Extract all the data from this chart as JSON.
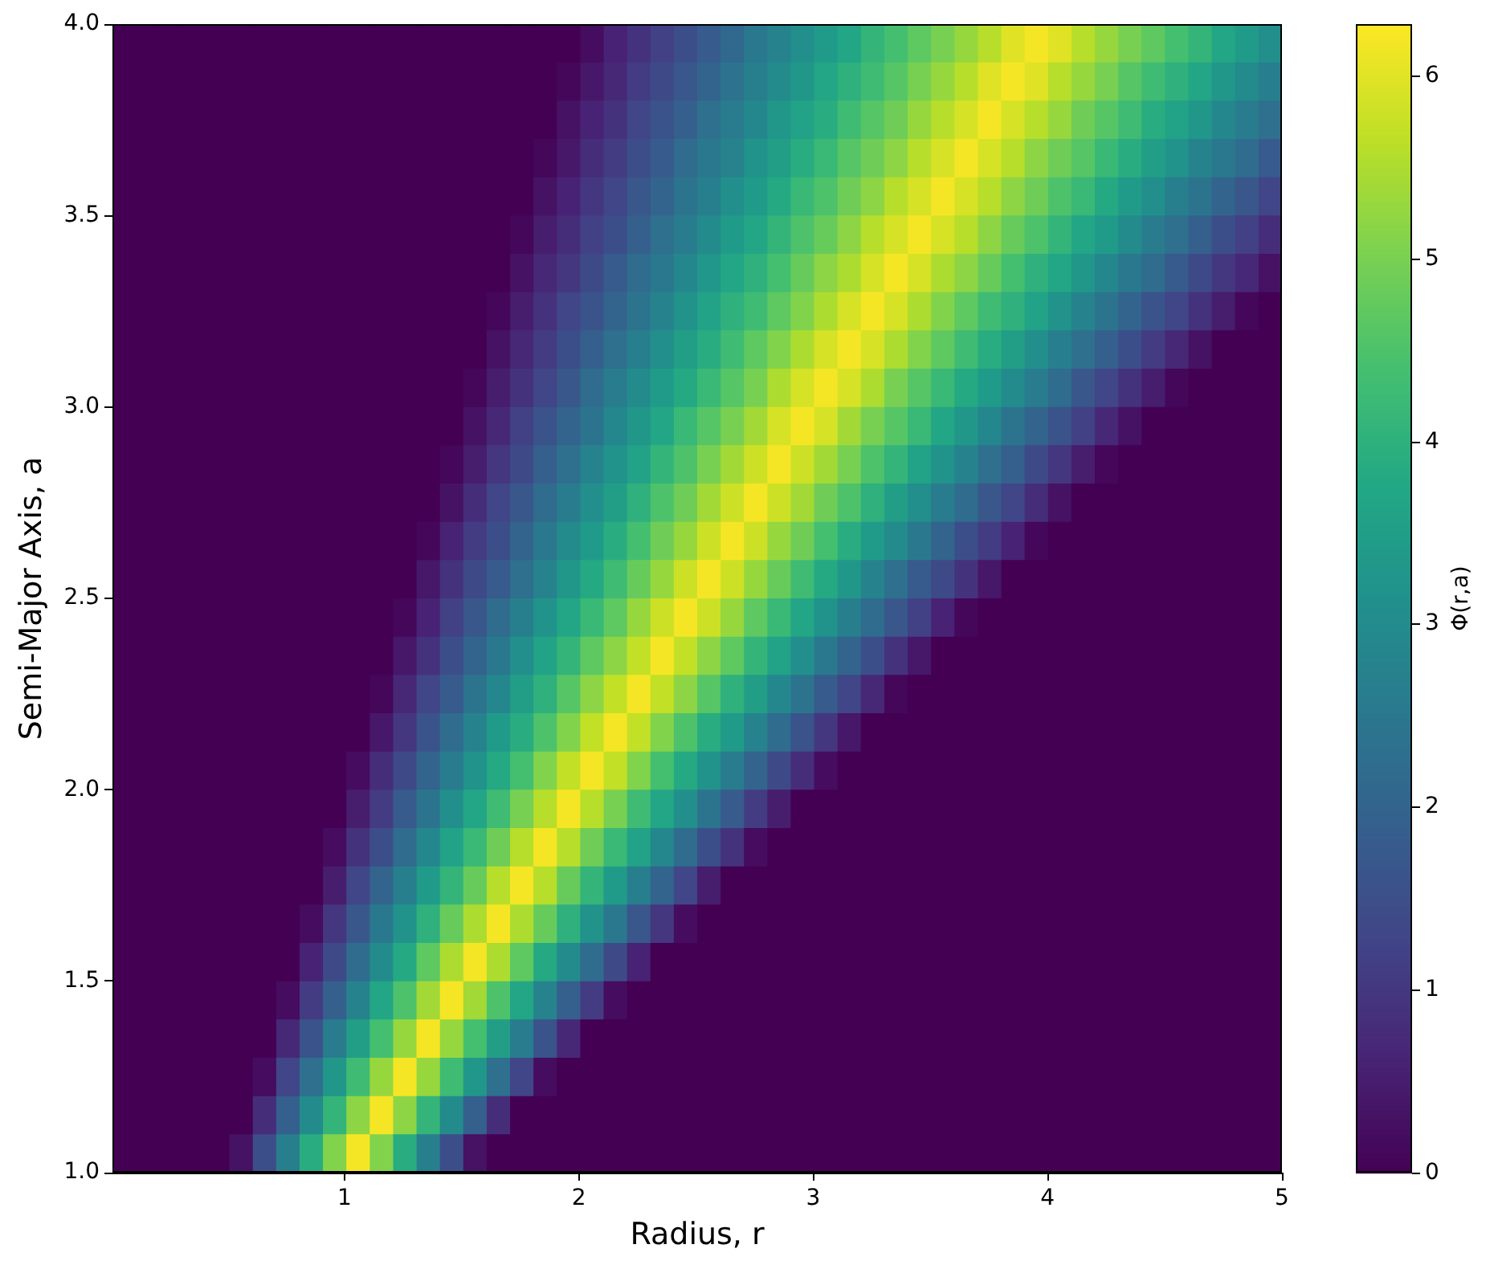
{
  "chart_data": {
    "type": "heatmap",
    "xlabel": "Radius, r",
    "ylabel": "Semi-Major Axis, a",
    "clabel": "Φ(r,a)",
    "xlim": [
      0.01,
      5
    ],
    "xticks": [
      1,
      2,
      3,
      4,
      5
    ],
    "ylim": [
      1,
      4
    ],
    "yticks": [
      {
        "value": 1,
        "label": "1.0"
      },
      1.5,
      {
        "value": 2,
        "label": "2.0"
      },
      2.5,
      {
        "value": 3,
        "label": "3.0"
      },
      3.5,
      {
        "value": 4,
        "label": "4.0"
      }
    ],
    "clim": [
      0,
      6.28
    ],
    "cticks": [
      0,
      1,
      2,
      3,
      4,
      5,
      6
    ],
    "cells": [
      [
        0,
        0,
        0,
        0,
        0,
        0,
        0,
        0,
        0,
        0,
        0,
        0,
        0,
        0,
        0,
        0,
        0,
        0,
        0,
        0,
        0.2,
        0.6,
        0.9,
        1.2,
        1.5,
        1.8,
        2.1,
        2.5,
        2.8,
        3.1,
        3.4,
        3.7,
        4.1,
        4.4,
        4.7,
        5.0,
        5.3,
        5.6,
        6.0,
        6.2,
        6.0,
        5.6,
        5.3,
        5.0,
        4.7,
        4.4,
        4.1,
        3.7,
        3.4,
        3.1
      ],
      [
        0,
        0,
        0,
        0,
        0,
        0,
        0,
        0,
        0,
        0,
        0,
        0,
        0,
        0,
        0,
        0,
        0,
        0,
        0,
        0.1,
        0.4,
        0.7,
        1.1,
        1.4,
        1.7,
        2.0,
        2.4,
        2.7,
        3.0,
        3.3,
        3.7,
        4.0,
        4.3,
        4.6,
        5.0,
        5.3,
        5.6,
        6.0,
        6.2,
        6.0,
        5.6,
        5.3,
        5.0,
        4.6,
        4.3,
        4.0,
        3.7,
        3.3,
        3.0,
        2.7
      ],
      [
        0,
        0,
        0,
        0,
        0,
        0,
        0,
        0,
        0,
        0,
        0,
        0,
        0,
        0,
        0,
        0,
        0,
        0,
        0,
        0.3,
        0.6,
        0.9,
        1.3,
        1.6,
        1.9,
        2.3,
        2.6,
        2.9,
        3.3,
        3.6,
        3.9,
        4.3,
        4.6,
        4.9,
        5.3,
        5.6,
        5.9,
        6.2,
        5.9,
        5.6,
        5.3,
        4.9,
        4.6,
        4.3,
        3.9,
        3.6,
        3.3,
        2.9,
        2.6,
        2.3
      ],
      [
        0,
        0,
        0,
        0,
        0,
        0,
        0,
        0,
        0,
        0,
        0,
        0,
        0,
        0,
        0,
        0,
        0,
        0,
        0.1,
        0.4,
        0.8,
        1.1,
        1.5,
        1.8,
        2.2,
        2.5,
        2.8,
        3.2,
        3.5,
        3.9,
        4.2,
        4.6,
        4.9,
        5.2,
        5.6,
        5.9,
        6.2,
        5.9,
        5.6,
        5.2,
        4.9,
        4.6,
        4.2,
        3.9,
        3.5,
        3.2,
        2.8,
        2.5,
        2.2,
        1.8
      ],
      [
        0,
        0,
        0,
        0,
        0,
        0,
        0,
        0,
        0,
        0,
        0,
        0,
        0,
        0,
        0,
        0,
        0,
        0,
        0.3,
        0.6,
        1.0,
        1.3,
        1.7,
        2.0,
        2.4,
        2.7,
        3.1,
        3.4,
        3.8,
        4.2,
        4.5,
        4.9,
        5.2,
        5.6,
        5.9,
        6.2,
        5.9,
        5.6,
        5.2,
        4.9,
        4.5,
        4.2,
        3.8,
        3.4,
        3.1,
        2.7,
        2.4,
        2.0,
        1.7,
        1.3
      ],
      [
        0,
        0,
        0,
        0,
        0,
        0,
        0,
        0,
        0,
        0,
        0,
        0,
        0,
        0,
        0,
        0,
        0,
        0.1,
        0.5,
        0.8,
        1.2,
        1.5,
        1.9,
        2.3,
        2.6,
        3.0,
        3.4,
        3.7,
        4.1,
        4.5,
        4.8,
        5.2,
        5.6,
        5.9,
        6.2,
        5.9,
        5.6,
        5.2,
        4.8,
        4.5,
        4.1,
        3.7,
        3.4,
        3.0,
        2.6,
        2.3,
        1.9,
        1.5,
        1.2,
        0.8
      ],
      [
        0,
        0,
        0,
        0,
        0,
        0,
        0,
        0,
        0,
        0,
        0,
        0,
        0,
        0,
        0,
        0,
        0,
        0.3,
        0.7,
        1.0,
        1.4,
        1.8,
        2.2,
        2.5,
        2.9,
        3.3,
        3.7,
        4.0,
        4.4,
        4.8,
        5.2,
        5.5,
        5.9,
        6.2,
        5.9,
        5.5,
        5.2,
        4.8,
        4.4,
        4.0,
        3.7,
        3.3,
        2.9,
        2.5,
        2.2,
        1.8,
        1.4,
        1.0,
        0.7,
        0.3
      ],
      [
        0,
        0,
        0,
        0,
        0,
        0,
        0,
        0,
        0,
        0,
        0,
        0,
        0,
        0,
        0,
        0,
        0.1,
        0.5,
        0.9,
        1.3,
        1.6,
        2.0,
        2.4,
        2.8,
        3.2,
        3.6,
        4.0,
        4.3,
        4.7,
        5.1,
        5.5,
        5.9,
        6.2,
        5.9,
        5.5,
        5.1,
        4.7,
        4.3,
        4.0,
        3.6,
        3.2,
        2.8,
        2.4,
        2.0,
        1.6,
        1.3,
        0.9,
        0.5,
        0.1,
        0
      ],
      [
        0,
        0,
        0,
        0,
        0,
        0,
        0,
        0,
        0,
        0,
        0,
        0,
        0,
        0,
        0,
        0,
        0.3,
        0.7,
        1.1,
        1.5,
        1.9,
        2.3,
        2.7,
        3.1,
        3.5,
        3.9,
        4.3,
        4.7,
        5.1,
        5.5,
        5.9,
        6.2,
        5.9,
        5.5,
        5.1,
        4.7,
        4.3,
        3.9,
        3.5,
        3.1,
        2.7,
        2.3,
        1.9,
        1.5,
        1.1,
        0.7,
        0.3,
        0,
        0,
        0
      ],
      [
        0,
        0,
        0,
        0,
        0,
        0,
        0,
        0,
        0,
        0,
        0,
        0,
        0,
        0,
        0,
        0.1,
        0.5,
        0.9,
        1.3,
        1.7,
        2.2,
        2.6,
        3.0,
        3.4,
        3.8,
        4.2,
        4.6,
        5.0,
        5.5,
        5.9,
        6.2,
        5.9,
        5.5,
        5.0,
        4.6,
        4.2,
        3.8,
        3.4,
        3.0,
        2.6,
        2.2,
        1.7,
        1.3,
        0.9,
        0.5,
        0.1,
        0,
        0,
        0,
        0
      ],
      [
        0,
        0,
        0,
        0,
        0,
        0,
        0,
        0,
        0,
        0,
        0,
        0,
        0,
        0,
        0,
        0.3,
        0.7,
        1.2,
        1.6,
        2.0,
        2.4,
        2.9,
        3.3,
        3.7,
        4.2,
        4.6,
        5.0,
        5.4,
        5.9,
        6.2,
        5.9,
        5.4,
        5.0,
        4.6,
        4.2,
        3.7,
        3.3,
        2.9,
        2.4,
        2.0,
        1.6,
        1.2,
        0.7,
        0.3,
        0,
        0,
        0,
        0,
        0,
        0
      ],
      [
        0,
        0,
        0,
        0,
        0,
        0,
        0,
        0,
        0,
        0,
        0,
        0,
        0,
        0,
        0.1,
        0.5,
        1.0,
        1.4,
        1.9,
        2.3,
        2.8,
        3.2,
        3.6,
        4.1,
        4.5,
        5.0,
        5.4,
        5.8,
        6.2,
        5.8,
        5.4,
        5.0,
        4.5,
        4.1,
        3.6,
        3.2,
        2.8,
        2.3,
        1.9,
        1.4,
        1.0,
        0.5,
        0.1,
        0,
        0,
        0,
        0,
        0,
        0,
        0
      ],
      [
        0,
        0,
        0,
        0,
        0,
        0,
        0,
        0,
        0,
        0,
        0,
        0,
        0,
        0,
        0.3,
        0.8,
        1.3,
        1.7,
        2.2,
        2.6,
        3.1,
        3.5,
        4.0,
        4.5,
        4.9,
        5.4,
        5.8,
        6.2,
        5.8,
        5.4,
        4.9,
        4.5,
        4.0,
        3.5,
        3.1,
        2.6,
        2.2,
        1.7,
        1.3,
        0.8,
        0.3,
        0,
        0,
        0,
        0,
        0,
        0,
        0,
        0,
        0
      ],
      [
        0,
        0,
        0,
        0,
        0,
        0,
        0,
        0,
        0,
        0,
        0,
        0,
        0,
        0.1,
        0.6,
        1.1,
        1.5,
        2.0,
        2.5,
        3.0,
        3.4,
        3.9,
        4.4,
        4.9,
        5.3,
        5.8,
        6.2,
        5.8,
        5.3,
        4.9,
        4.4,
        3.9,
        3.4,
        3.0,
        2.5,
        2.0,
        1.5,
        1.1,
        0.6,
        0.1,
        0,
        0,
        0,
        0,
        0,
        0,
        0,
        0,
        0,
        0
      ],
      [
        0,
        0,
        0,
        0,
        0,
        0,
        0,
        0,
        0,
        0,
        0,
        0,
        0,
        0.4,
        0.9,
        1.4,
        1.8,
        2.3,
        2.8,
        3.3,
        3.8,
        4.3,
        4.8,
        5.3,
        5.8,
        6.2,
        5.8,
        5.3,
        4.8,
        4.3,
        3.8,
        3.3,
        2.8,
        2.3,
        1.8,
        1.4,
        0.9,
        0.4,
        0,
        0,
        0,
        0,
        0,
        0,
        0,
        0,
        0,
        0,
        0,
        0
      ],
      [
        0,
        0,
        0,
        0,
        0,
        0,
        0,
        0,
        0,
        0,
        0,
        0,
        0.1,
        0.6,
        1.2,
        1.7,
        2.2,
        2.7,
        3.2,
        3.7,
        4.2,
        4.7,
        5.3,
        5.8,
        6.2,
        5.8,
        5.3,
        4.7,
        4.2,
        3.7,
        3.2,
        2.7,
        2.2,
        1.7,
        1.2,
        0.6,
        0.1,
        0,
        0,
        0,
        0,
        0,
        0,
        0,
        0,
        0,
        0,
        0,
        0,
        0
      ],
      [
        0,
        0,
        0,
        0,
        0,
        0,
        0,
        0,
        0,
        0,
        0,
        0,
        0.4,
        0.9,
        1.5,
        2.0,
        2.5,
        3.1,
        3.6,
        4.1,
        4.7,
        5.2,
        5.7,
        6.2,
        5.7,
        5.2,
        4.7,
        4.1,
        3.6,
        3.1,
        2.5,
        2.0,
        1.5,
        0.9,
        0.4,
        0,
        0,
        0,
        0,
        0,
        0,
        0,
        0,
        0,
        0,
        0,
        0,
        0,
        0,
        0
      ],
      [
        0,
        0,
        0,
        0,
        0,
        0,
        0,
        0,
        0,
        0,
        0,
        0.1,
        0.7,
        1.3,
        1.8,
        2.4,
        2.9,
        3.5,
        4.0,
        4.6,
        5.2,
        5.7,
        6.2,
        5.7,
        5.2,
        4.6,
        4.0,
        3.5,
        2.9,
        2.4,
        1.8,
        1.3,
        0.7,
        0.1,
        0,
        0,
        0,
        0,
        0,
        0,
        0,
        0,
        0,
        0,
        0,
        0,
        0,
        0,
        0,
        0
      ],
      [
        0,
        0,
        0,
        0,
        0,
        0,
        0,
        0,
        0,
        0,
        0,
        0.4,
        1.0,
        1.6,
        2.2,
        2.8,
        3.4,
        3.9,
        4.5,
        5.1,
        5.7,
        6.2,
        5.7,
        5.1,
        4.5,
        3.9,
        3.4,
        2.8,
        2.2,
        1.6,
        1.0,
        0.4,
        0,
        0,
        0,
        0,
        0,
        0,
        0,
        0,
        0,
        0,
        0,
        0,
        0,
        0,
        0,
        0,
        0,
        0
      ],
      [
        0,
        0,
        0,
        0,
        0,
        0,
        0,
        0,
        0,
        0,
        0.2,
        0.8,
        1.4,
        2.0,
        2.6,
        3.2,
        3.8,
        4.4,
        5.1,
        5.7,
        6.2,
        5.7,
        5.1,
        4.4,
        3.8,
        3.2,
        2.6,
        2.0,
        1.4,
        0.8,
        0.2,
        0,
        0,
        0,
        0,
        0,
        0,
        0,
        0,
        0,
        0,
        0,
        0,
        0,
        0,
        0,
        0,
        0,
        0,
        0
      ],
      [
        0,
        0,
        0,
        0,
        0,
        0,
        0,
        0,
        0,
        0,
        0.5,
        1.1,
        1.8,
        2.4,
        3.1,
        3.7,
        4.3,
        5.0,
        5.6,
        6.2,
        5.6,
        5.0,
        4.3,
        3.7,
        3.1,
        2.4,
        1.8,
        1.1,
        0.5,
        0,
        0,
        0,
        0,
        0,
        0,
        0,
        0,
        0,
        0,
        0,
        0,
        0,
        0,
        0,
        0,
        0,
        0,
        0,
        0,
        0
      ],
      [
        0,
        0,
        0,
        0,
        0,
        0,
        0,
        0,
        0,
        0.2,
        0.9,
        1.5,
        2.2,
        2.9,
        3.6,
        4.2,
        4.9,
        5.6,
        6.2,
        5.6,
        4.9,
        4.2,
        3.6,
        2.9,
        2.2,
        1.5,
        0.9,
        0.2,
        0,
        0,
        0,
        0,
        0,
        0,
        0,
        0,
        0,
        0,
        0,
        0,
        0,
        0,
        0,
        0,
        0,
        0,
        0,
        0,
        0,
        0
      ],
      [
        0,
        0,
        0,
        0,
        0,
        0,
        0,
        0,
        0,
        0.5,
        1.3,
        2.0,
        2.7,
        3.4,
        4.1,
        4.8,
        5.6,
        6.2,
        5.6,
        4.8,
        4.1,
        3.4,
        2.7,
        2.0,
        1.3,
        0.5,
        0,
        0,
        0,
        0,
        0,
        0,
        0,
        0,
        0,
        0,
        0,
        0,
        0,
        0,
        0,
        0,
        0,
        0,
        0,
        0,
        0,
        0,
        0,
        0
      ],
      [
        0,
        0,
        0,
        0,
        0,
        0,
        0,
        0,
        0.2,
        1.0,
        1.7,
        2.5,
        3.2,
        4.0,
        4.8,
        5.5,
        6.2,
        5.5,
        4.8,
        4.0,
        3.2,
        2.5,
        1.7,
        1.0,
        0.2,
        0,
        0,
        0,
        0,
        0,
        0,
        0,
        0,
        0,
        0,
        0,
        0,
        0,
        0,
        0,
        0,
        0,
        0,
        0,
        0,
        0,
        0,
        0,
        0,
        0
      ],
      [
        0,
        0,
        0,
        0,
        0,
        0,
        0,
        0,
        0.6,
        1.4,
        2.2,
        3.0,
        3.8,
        4.7,
        5.5,
        6.2,
        5.5,
        4.7,
        3.8,
        3.0,
        2.2,
        1.4,
        0.6,
        0,
        0,
        0,
        0,
        0,
        0,
        0,
        0,
        0,
        0,
        0,
        0,
        0,
        0,
        0,
        0,
        0,
        0,
        0,
        0,
        0,
        0,
        0,
        0,
        0,
        0,
        0
      ],
      [
        0,
        0,
        0,
        0,
        0,
        0,
        0,
        0.2,
        1.1,
        1.9,
        2.8,
        3.7,
        4.5,
        5.4,
        6.2,
        5.4,
        4.5,
        3.7,
        2.8,
        1.9,
        1.1,
        0.2,
        0,
        0,
        0,
        0,
        0,
        0,
        0,
        0,
        0,
        0,
        0,
        0,
        0,
        0,
        0,
        0,
        0,
        0,
        0,
        0,
        0,
        0,
        0,
        0,
        0,
        0,
        0,
        0
      ],
      [
        0,
        0,
        0,
        0,
        0,
        0,
        0,
        0.7,
        1.6,
        2.6,
        3.5,
        4.4,
        5.3,
        6.2,
        5.3,
        4.4,
        3.5,
        2.6,
        1.6,
        0.7,
        0,
        0,
        0,
        0,
        0,
        0,
        0,
        0,
        0,
        0,
        0,
        0,
        0,
        0,
        0,
        0,
        0,
        0,
        0,
        0,
        0,
        0,
        0,
        0,
        0,
        0,
        0,
        0,
        0,
        0
      ],
      [
        0,
        0,
        0,
        0,
        0,
        0,
        0.2,
        1.3,
        2.3,
        3.3,
        4.3,
        5.3,
        6.2,
        5.3,
        4.3,
        3.3,
        2.3,
        1.3,
        0.2,
        0,
        0,
        0,
        0,
        0,
        0,
        0,
        0,
        0,
        0,
        0,
        0,
        0,
        0,
        0,
        0,
        0,
        0,
        0,
        0,
        0,
        0,
        0,
        0,
        0,
        0,
        0,
        0,
        0,
        0,
        0
      ],
      [
        0,
        0,
        0,
        0,
        0,
        0,
        0.8,
        1.9,
        3.0,
        4.1,
        5.2,
        6.2,
        5.2,
        4.1,
        3.0,
        1.9,
        0.8,
        0,
        0,
        0,
        0,
        0,
        0,
        0,
        0,
        0,
        0,
        0,
        0,
        0,
        0,
        0,
        0,
        0,
        0,
        0,
        0,
        0,
        0,
        0,
        0,
        0,
        0,
        0,
        0,
        0,
        0,
        0,
        0,
        0
      ],
      [
        0,
        0,
        0,
        0,
        0,
        0.3,
        1.5,
        2.7,
        3.9,
        5.1,
        6.2,
        5.1,
        3.9,
        2.7,
        1.5,
        0.3,
        0,
        0,
        0,
        0,
        0,
        0,
        0,
        0,
        0,
        0,
        0,
        0,
        0,
        0,
        0,
        0,
        0,
        0,
        0,
        0,
        0,
        0,
        0,
        0,
        0,
        0,
        0,
        0,
        0,
        0,
        0,
        0,
        0,
        0
      ]
    ]
  }
}
